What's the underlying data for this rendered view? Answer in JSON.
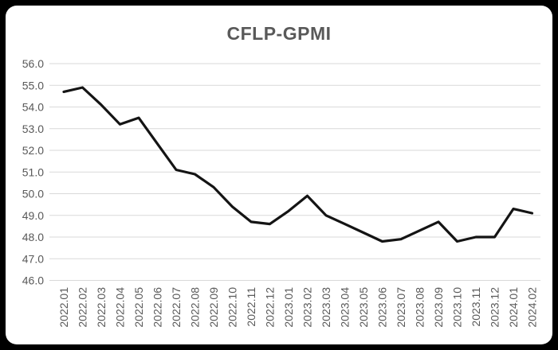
{
  "page": {
    "background_color": "#000000",
    "card_color": "#ffffff"
  },
  "chart": {
    "title": "CFLP-GPMI",
    "title_color": "#595959",
    "axis_label_color": "#595959",
    "gridline_color": "#d9d9d9",
    "line_color": "#141414"
  },
  "chart_data": {
    "type": "line",
    "title": "CFLP-GPMI",
    "xlabel": "",
    "ylabel": "",
    "ylim": [
      46.0,
      56.0
    ],
    "ytick_step": 1.0,
    "ytick_labels": [
      "56.0",
      "55.0",
      "54.0",
      "53.0",
      "52.0",
      "51.0",
      "50.0",
      "49.0",
      "48.0",
      "47.0",
      "46.0"
    ],
    "grid": "horizontal",
    "legend": "none",
    "categories": [
      "2022.01",
      "2022.02",
      "2022.03",
      "2022.04",
      "2022.05",
      "2022.06",
      "2022.07",
      "2022.08",
      "2022.09",
      "2022.10",
      "2022.11",
      "2022.12",
      "2023.01",
      "2023.02",
      "2023.03",
      "2023.04",
      "2023.05",
      "2023.06",
      "2023.07",
      "2023.08",
      "2023.09",
      "2023.10",
      "2023.11",
      "2023.12",
      "2024.01",
      "2024.02"
    ],
    "series": [
      {
        "name": "CFLP-GPMI",
        "values": [
          54.7,
          54.9,
          54.1,
          53.2,
          53.5,
          52.3,
          51.1,
          50.9,
          50.3,
          49.4,
          48.7,
          48.6,
          49.2,
          49.9,
          49.0,
          48.6,
          48.2,
          47.8,
          47.9,
          48.3,
          48.7,
          47.8,
          48.0,
          48.0,
          49.3,
          49.1
        ]
      }
    ]
  }
}
